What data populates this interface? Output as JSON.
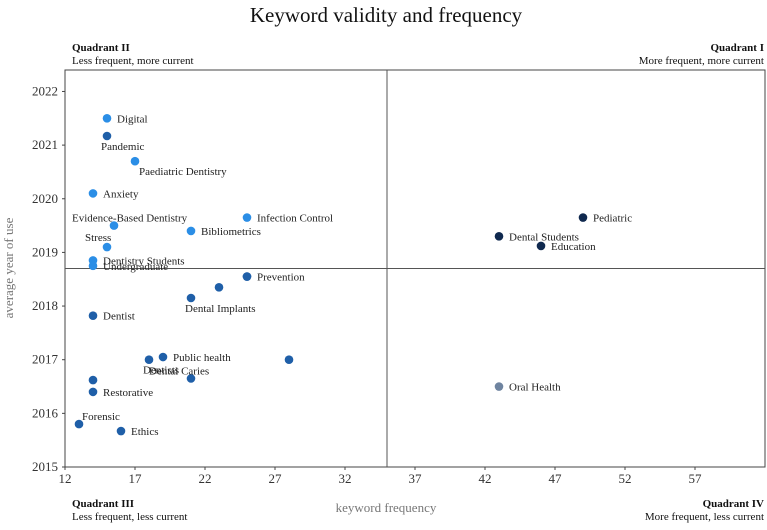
{
  "chart_data": {
    "type": "scatter",
    "title": "Keyword validity and frequency",
    "xlabel": "keyword frequency",
    "ylabel": "average year of use",
    "xlim": [
      12,
      62
    ],
    "ylim": [
      2015,
      2022.4
    ],
    "xticks": [
      12,
      17,
      22,
      27,
      32,
      37,
      42,
      47,
      52,
      57
    ],
    "yticks": [
      2015,
      2016,
      2017,
      2018,
      2019,
      2020,
      2021,
      2022
    ],
    "divider_x": 35,
    "divider_y": 2018.7,
    "quadrants": [
      {
        "id": "I",
        "title": "Quadrant I",
        "subtitle": "More frequent, more current",
        "position": "top-right"
      },
      {
        "id": "II",
        "title": "Quadrant II",
        "subtitle": "Less frequent, more current",
        "position": "top-left"
      },
      {
        "id": "III",
        "title": "Quadrant III",
        "subtitle": "Less frequent, less current",
        "position": "bottom-left"
      },
      {
        "id": "IV",
        "title": "Quadrant IV",
        "subtitle": "More frequent, less current",
        "position": "bottom-right"
      }
    ],
    "colors": {
      "light": "#2b8ee6",
      "medium": "#1f5fa8",
      "dark": "#10294f",
      "gray": "#6f84a0"
    },
    "points": [
      {
        "label": "Digital",
        "x": 15.0,
        "y": 2021.5,
        "color": "light",
        "label_side": "right"
      },
      {
        "label": "Pandemic",
        "x": 15.0,
        "y": 2021.17,
        "color": "medium",
        "label_side": "below"
      },
      {
        "label": "Paediatric Dentistry",
        "x": 17.0,
        "y": 2020.7,
        "color": "light",
        "label_side": "below-right"
      },
      {
        "label": "Anxiety",
        "x": 14.0,
        "y": 2020.1,
        "color": "light",
        "label_side": "right"
      },
      {
        "label": "Infection Control",
        "x": 25.0,
        "y": 2019.65,
        "color": "light",
        "label_side": "right"
      },
      {
        "label": "Evidence-Based Dentistry",
        "x": 15.5,
        "y": 2019.5,
        "color": "light",
        "label_side": "above"
      },
      {
        "label": "Bibliometrics",
        "x": 21.0,
        "y": 2019.4,
        "color": "light",
        "label_side": "right"
      },
      {
        "label": "Stress",
        "x": 15.0,
        "y": 2019.1,
        "color": "light",
        "label_side": "above-left"
      },
      {
        "label": "Dentistry Students",
        "x": 14.0,
        "y": 2018.85,
        "color": "light",
        "label_side": "right"
      },
      {
        "label": "Undergraduate",
        "x": 14.0,
        "y": 2018.75,
        "color": "light",
        "label_side": "right"
      },
      {
        "label": "",
        "x": 25.0,
        "y": 2018.55,
        "color": "medium",
        "label_side": "none"
      },
      {
        "label": "Prevention",
        "x": 25.0,
        "y": 2018.55,
        "color": "medium",
        "label_side": "right"
      },
      {
        "label": "",
        "x": 23.0,
        "y": 2018.35,
        "color": "medium",
        "label_side": "none"
      },
      {
        "label": "Dental Implants",
        "x": 21.0,
        "y": 2018.15,
        "color": "medium",
        "label_side": "below"
      },
      {
        "label": "Dentist",
        "x": 14.0,
        "y": 2017.82,
        "color": "medium",
        "label_side": "right"
      },
      {
        "label": "Public health",
        "x": 19.0,
        "y": 2017.05,
        "color": "medium",
        "label_side": "right"
      },
      {
        "label": "Dentists",
        "x": 18.0,
        "y": 2017.0,
        "color": "medium",
        "label_side": "below"
      },
      {
        "label": "",
        "x": 28.0,
        "y": 2017.0,
        "color": "medium",
        "label_side": "none"
      },
      {
        "label": "Dental Caries",
        "x": 21.0,
        "y": 2016.65,
        "color": "medium",
        "label_side": "above"
      },
      {
        "label": "",
        "x": 14.0,
        "y": 2016.62,
        "color": "medium",
        "label_side": "none"
      },
      {
        "label": "Restorative",
        "x": 14.0,
        "y": 2016.4,
        "color": "medium",
        "label_side": "right"
      },
      {
        "label": "Forensic",
        "x": 13.0,
        "y": 2015.8,
        "color": "medium",
        "label_side": "above-right"
      },
      {
        "label": "Ethics",
        "x": 16.0,
        "y": 2015.67,
        "color": "medium",
        "label_side": "right"
      },
      {
        "label": "Pediatric",
        "x": 49.0,
        "y": 2019.65,
        "color": "dark",
        "label_side": "right"
      },
      {
        "label": "Dental Students",
        "x": 43.0,
        "y": 2019.3,
        "color": "dark",
        "label_side": "right"
      },
      {
        "label": "Education",
        "x": 46.0,
        "y": 2019.12,
        "color": "dark",
        "label_side": "right"
      },
      {
        "label": "Oral Health",
        "x": 43.0,
        "y": 2016.5,
        "color": "gray",
        "label_side": "right"
      }
    ]
  }
}
